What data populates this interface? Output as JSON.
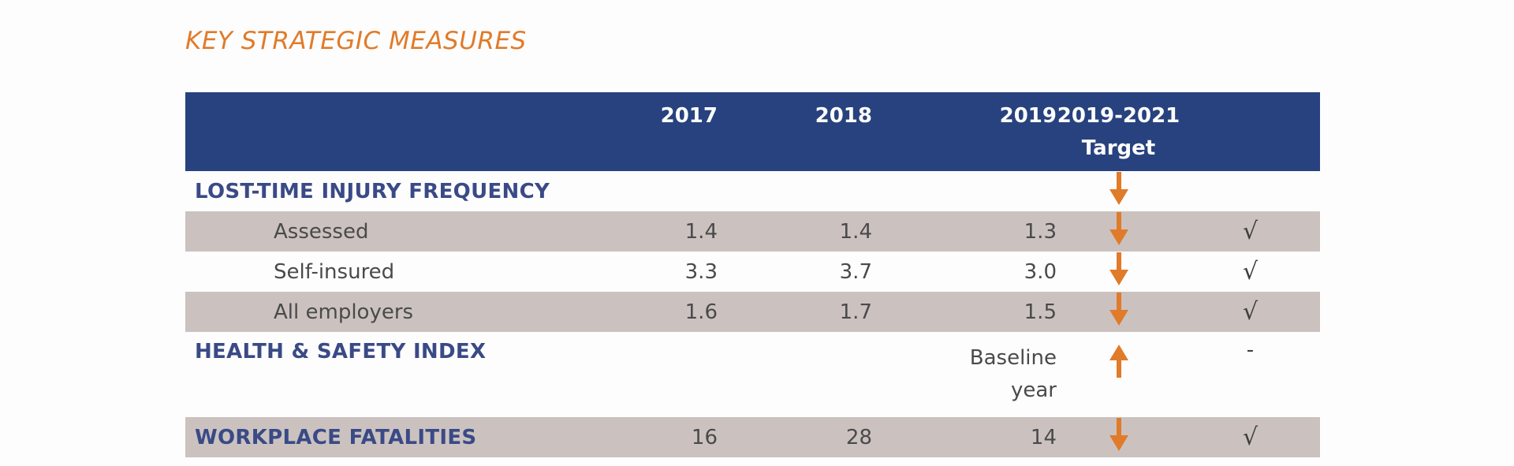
{
  "title": "KEY STRATEGIC MEASURES",
  "colors": {
    "title": "#e07b2a",
    "header_bg": "#27427e",
    "category_text": "#3a4a86",
    "shaded_row": "#cbc2c0",
    "arrow": "#e07b2a"
  },
  "table": {
    "headers": {
      "y2017": "2017",
      "y2018": "2018",
      "y2019": "2019",
      "target_line1": "2019-2021",
      "target_line2": "Target"
    },
    "rows": [
      {
        "label": "LOST-TIME INJURY FREQUENCY",
        "kind": "category",
        "v2017": "",
        "v2018": "",
        "v2019": "",
        "target_icon": "arrow-down-icon",
        "met": ""
      },
      {
        "label": "Assessed",
        "kind": "sub",
        "v2017": "1.4",
        "v2018": "1.4",
        "v2019": "1.3",
        "target_icon": "arrow-down-icon",
        "met": "√"
      },
      {
        "label": "Self-insured",
        "kind": "sub",
        "v2017": "3.3",
        "v2018": "3.7",
        "v2019": "3.0",
        "target_icon": "arrow-down-icon",
        "met": "√"
      },
      {
        "label": "All employers",
        "kind": "sub",
        "v2017": "1.6",
        "v2018": "1.7",
        "v2019": "1.5",
        "target_icon": "arrow-down-icon",
        "met": "√"
      },
      {
        "label": "HEALTH & SAFETY INDEX",
        "kind": "category",
        "v2017": "",
        "v2018": "",
        "v2019_line1": "Baseline",
        "v2019_line2": "year",
        "target_icon": "arrow-up-icon",
        "met": "-"
      },
      {
        "label": "WORKPLACE FATALITIES",
        "kind": "category",
        "v2017": "16",
        "v2018": "28",
        "v2019": "14",
        "target_icon": "arrow-down-icon",
        "met": "√"
      }
    ]
  }
}
